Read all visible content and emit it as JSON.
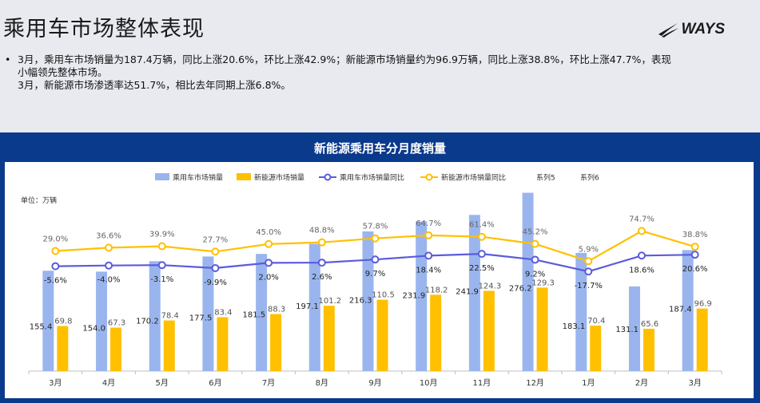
{
  "header": {
    "title": "乘用车市场整体表现",
    "logo_text": "WAYS"
  },
  "summary": {
    "bullet": "•",
    "lines": [
      "3月，乘用车市场销量为187.4万辆，同比上涨20.6%，环比上涨42.9%；新能源市场销量约为96.9万辆，同比上涨38.8%，环比上涨47.7%，表现",
      "小幅领先整体市场。",
      "3月，新能源市场渗透率达51.7%，相比去年同期上涨6.8%。"
    ]
  },
  "panel": {
    "title": "新能源乘用车分月度销量",
    "colors": {
      "background": "#0a3a8c"
    }
  },
  "chart_data": {
    "type": "bar",
    "unit_label": "单位：万辆",
    "categories": [
      "3月",
      "4月",
      "5月",
      "6月",
      "7月",
      "8月",
      "9月",
      "10月",
      "11月",
      "12月",
      "1月",
      "2月",
      "3月"
    ],
    "legend": [
      "乘用车市场销量",
      "新能源市场销量",
      "乘用车市场销量同比",
      "新能源市场销量同比",
      "系列5",
      "系列6"
    ],
    "legend_position": "top",
    "series": [
      {
        "name": "乘用车市场销量",
        "kind": "bar",
        "color": "#9ab5ee",
        "values": [
          155.4,
          154.0,
          170.2,
          177.5,
          181.5,
          197.1,
          216.3,
          231.9,
          241.9,
          276.2,
          183.1,
          131.1,
          187.4
        ]
      },
      {
        "name": "新能源市场销量",
        "kind": "bar",
        "color": "#ffc000",
        "values": [
          69.8,
          67.3,
          78.4,
          83.4,
          88.3,
          101.2,
          110.5,
          118.2,
          124.3,
          129.3,
          70.4,
          65.6,
          96.9
        ]
      },
      {
        "name": "乘用车市场销量同比",
        "kind": "line",
        "color": "#5b5bdc",
        "unit": "%",
        "values": [
          -5.6,
          -4.0,
          -3.1,
          -9.9,
          2.0,
          2.6,
          9.7,
          18.4,
          22.5,
          9.2,
          -17.7,
          18.6,
          20.6
        ]
      },
      {
        "name": "新能源市场销量同比",
        "kind": "line",
        "color": "#ffc000",
        "unit": "%",
        "values": [
          29.0,
          36.6,
          39.9,
          27.7,
          45.0,
          48.8,
          57.8,
          64.7,
          61.4,
          45.2,
          5.9,
          74.7,
          38.8
        ]
      }
    ],
    "grid": false
  }
}
